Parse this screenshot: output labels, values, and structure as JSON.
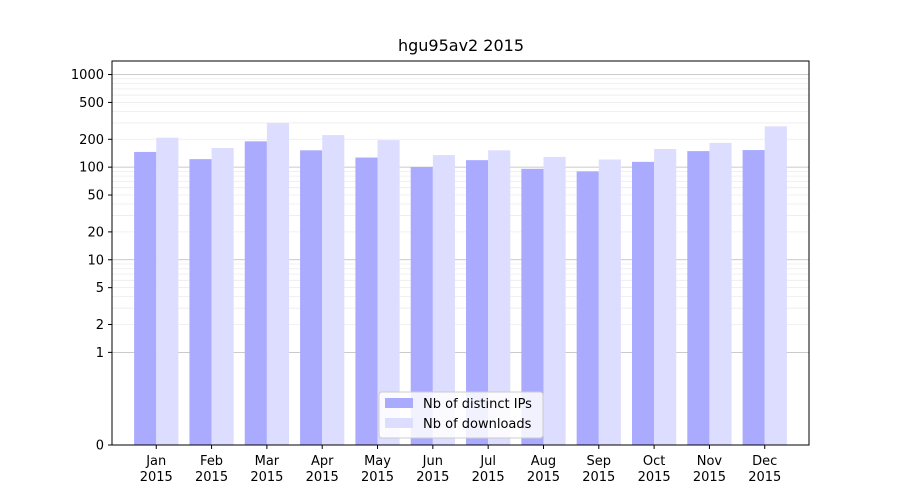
{
  "chart_data": {
    "type": "bar",
    "title": "hgu95av2 2015",
    "xlabel": "",
    "ylabel": "",
    "y_scale": "symlog",
    "ylim": [
      0,
      1400
    ],
    "grid": "horizontal",
    "legend_placement": "bottom-center",
    "categories": [
      [
        "Jan",
        "2015"
      ],
      [
        "Feb",
        "2015"
      ],
      [
        "Mar",
        "2015"
      ],
      [
        "Apr",
        "2015"
      ],
      [
        "May",
        "2015"
      ],
      [
        "Jun",
        "2015"
      ],
      [
        "Jul",
        "2015"
      ],
      [
        "Aug",
        "2015"
      ],
      [
        "Sep",
        "2015"
      ],
      [
        "Oct",
        "2015"
      ],
      [
        "Nov",
        "2015"
      ],
      [
        "Dec",
        "2015"
      ]
    ],
    "y_ticks": [
      "0",
      "1",
      "2",
      "5",
      "10",
      "20",
      "50",
      "100",
      "200",
      "500",
      "1000"
    ],
    "series": [
      {
        "name": "Nb of distinct IPs",
        "color": "#aaaaff",
        "values": [
          146,
          122,
          190,
          152,
          127,
          100,
          119,
          96,
          90,
          114,
          149,
          153
        ]
      },
      {
        "name": "Nb of downloads",
        "color": "#ddddff",
        "values": [
          208,
          161,
          300,
          222,
          196,
          135,
          152,
          129,
          121,
          157,
          183,
          276
        ]
      }
    ]
  }
}
